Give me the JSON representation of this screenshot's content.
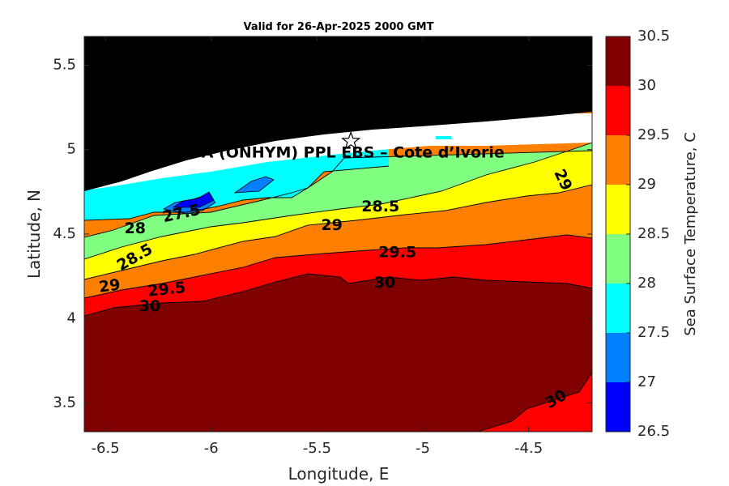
{
  "chart_data": {
    "type": "heatmap",
    "title": "Valid for 26-Apr-2025 2000 GMT",
    "xlabel": "Longitude, E",
    "ylabel": "Latitude, N",
    "xlim": [
      -6.6,
      -4.2
    ],
    "ylim": [
      3.33,
      5.67
    ],
    "x_ticks": [
      -6.5,
      -6,
      -5.5,
      -5,
      -4.5
    ],
    "x_tick_labels": [
      "-6.5",
      "-6",
      "-5.5",
      "-5",
      "-4.5"
    ],
    "y_ticks": [
      3.5,
      4,
      4.5,
      5,
      5.5
    ],
    "y_tick_labels": [
      "3.5",
      "4",
      "4.5",
      "5",
      "5.5"
    ],
    "colorbar": {
      "label": "Sea Surface Temperature, C",
      "range": [
        26.5,
        30.5
      ],
      "levels": [
        26.5,
        27,
        27.5,
        28,
        28.5,
        29,
        29.5,
        30,
        30.5
      ],
      "tick_labels": [
        "26.5",
        "27",
        "27.5",
        "28",
        "28.5",
        "29",
        "29.5",
        "30",
        "30.5"
      ],
      "colors": [
        "#0000ff",
        "#0080ff",
        "#00ffff",
        "#80ff80",
        "#ffff00",
        "#ff8000",
        "#ff0000",
        "#800000"
      ]
    },
    "land_color": "#000000",
    "nodata_color": "#ffffff",
    "contour_line_color": "#000000",
    "contours": [
      {
        "level": 27.5,
        "label": "27.5"
      },
      {
        "level": 28,
        "label": "28"
      },
      {
        "level": 28.5,
        "label": "28.5"
      },
      {
        "level": 29,
        "label": "29"
      },
      {
        "level": 29.5,
        "label": "29.5"
      },
      {
        "level": 30,
        "label": "30"
      }
    ],
    "contour_labels": [
      {
        "text": "27.5",
        "x": -6.14,
        "y": 4.62,
        "rot": -12
      },
      {
        "text": "28",
        "x": -6.36,
        "y": 4.53,
        "rot": 0
      },
      {
        "text": "28.5",
        "x": -6.36,
        "y": 4.36,
        "rot": -30
      },
      {
        "text": "29",
        "x": -6.48,
        "y": 4.19,
        "rot": -8
      },
      {
        "text": "29.5",
        "x": -6.21,
        "y": 4.17,
        "rot": -6
      },
      {
        "text": "30",
        "x": -6.29,
        "y": 4.07,
        "rot": 0
      },
      {
        "text": "28.5",
        "x": -5.2,
        "y": 4.66,
        "rot": 0
      },
      {
        "text": "29",
        "x": -5.43,
        "y": 4.55,
        "rot": 0
      },
      {
        "text": "29.5",
        "x": -5.12,
        "y": 4.39,
        "rot": 0
      },
      {
        "text": "30",
        "x": -5.18,
        "y": 4.21,
        "rot": 0
      },
      {
        "text": "29",
        "x": -4.34,
        "y": 4.82,
        "rot": 65
      },
      {
        "text": "30",
        "x": -4.37,
        "y": 3.52,
        "rot": -30
      }
    ],
    "annotation": {
      "text": "A (ONHYM) PPL EBS  – Cote d’Ivorie",
      "x": -5.33,
      "y": 4.98
    },
    "site_marker": {
      "symbol": "star",
      "lon": -5.34,
      "lat": 5.05
    }
  }
}
